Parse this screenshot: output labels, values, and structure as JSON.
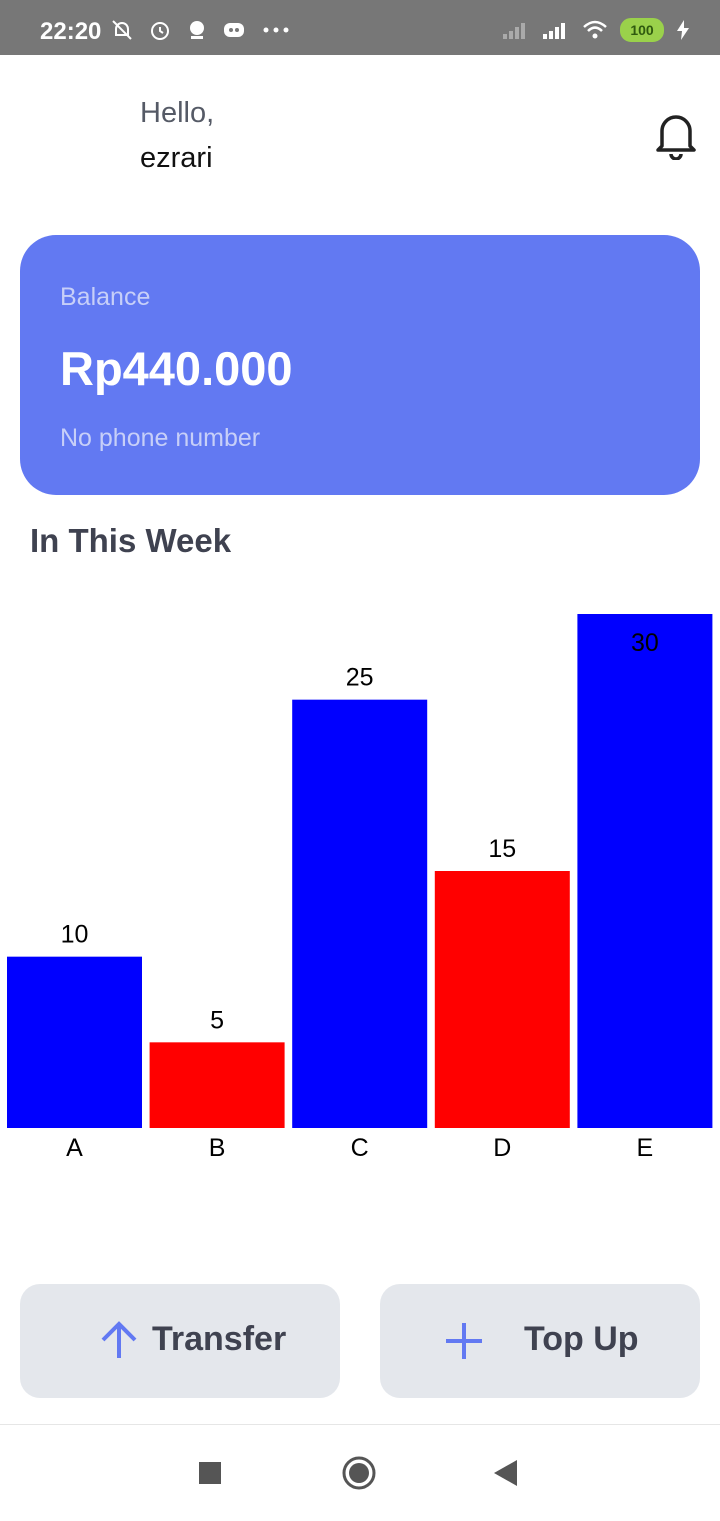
{
  "status_bar": {
    "time": "22:20",
    "left_icons": [
      "mute-bell-icon",
      "alarm-icon",
      "app-icon",
      "discord-icon",
      "more-dots-icon"
    ],
    "right_icons": [
      "signal-icon",
      "signal-full-icon",
      "wifi-icon",
      "battery-icon",
      "charging-icon"
    ],
    "battery": "100"
  },
  "header": {
    "greeting": "Hello,",
    "username": "ezrari"
  },
  "balance_card": {
    "label": "Balance",
    "amount": "Rp440.000",
    "phone": "No phone number",
    "color": "#6279f2"
  },
  "section": {
    "title": "In This Week"
  },
  "chart_data": {
    "type": "bar",
    "categories": [
      "A",
      "B",
      "C",
      "D",
      "E"
    ],
    "values": [
      10,
      5,
      25,
      15,
      30
    ],
    "colors": [
      "#0000ff",
      "#ff0000",
      "#0000ff",
      "#ff0000",
      "#0000ff"
    ],
    "ylim": [
      0,
      30
    ],
    "grid": false,
    "title": "",
    "xlabel": "",
    "ylabel": ""
  },
  "actions": {
    "transfer_label": "Transfer",
    "topup_label": "Top Up",
    "accent": "#6279f2"
  },
  "nav": {
    "items": [
      "recents-icon",
      "home-icon",
      "back-icon"
    ]
  }
}
